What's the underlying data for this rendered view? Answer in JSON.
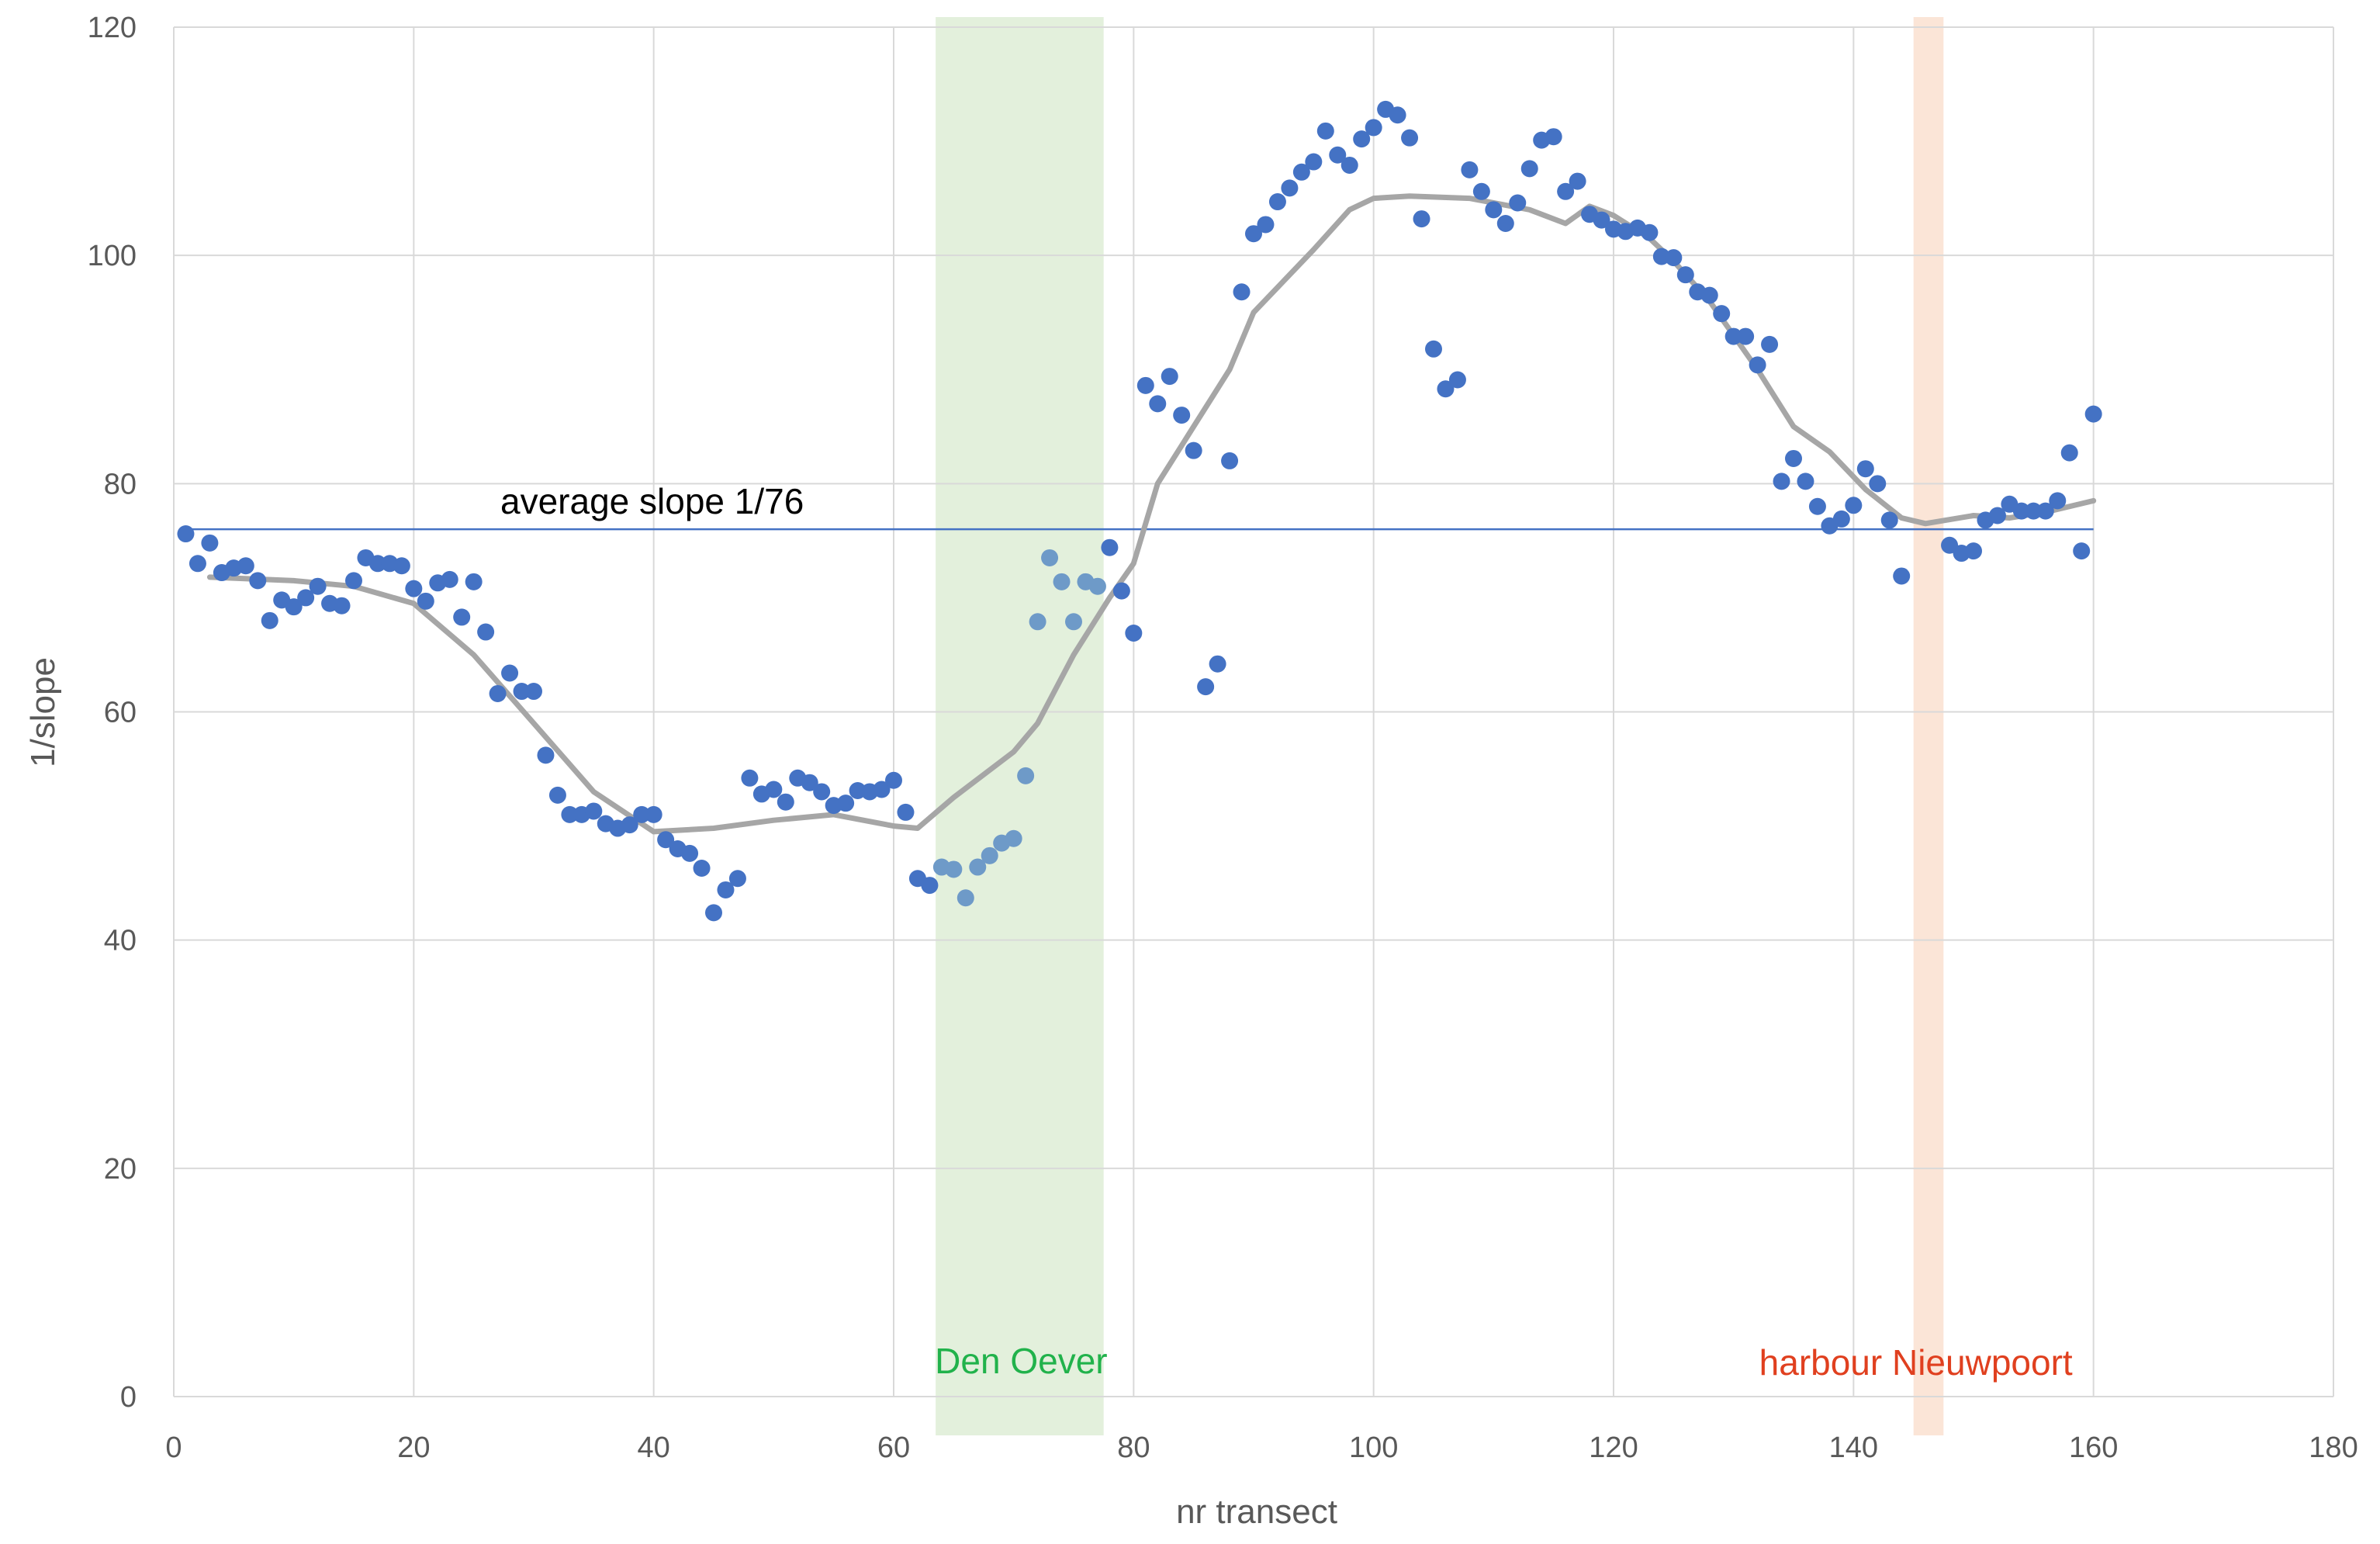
{
  "chart_data": {
    "type": "scatter",
    "title": "",
    "xlabel": "nr transect",
    "ylabel": "1/slope",
    "xlim": [
      0,
      180
    ],
    "ylim": [
      0,
      120
    ],
    "x_ticks": [
      0,
      20,
      40,
      60,
      80,
      100,
      120,
      140,
      160,
      180
    ],
    "y_ticks": [
      0,
      20,
      40,
      60,
      80,
      100,
      120
    ],
    "grid": true,
    "legend": "none",
    "colors": {
      "points": "#4472C4",
      "points_in_den_oever_band": "#6E9AC8",
      "trend": "#A6A6A6",
      "average_line": "#4472C4",
      "den_oever_band": "#E2EFDA",
      "den_oever_text": "#21B24B",
      "nieuwpoort_band": "#FBE4D5",
      "nieuwpoort_text": "#E0401F",
      "grid": "#D9D9D9",
      "axis_text": "#595959"
    },
    "points": [
      [
        1,
        75.6
      ],
      [
        2,
        73.0
      ],
      [
        3,
        74.8
      ],
      [
        4,
        72.2
      ],
      [
        5,
        72.6
      ],
      [
        6,
        72.8
      ],
      [
        7,
        71.5
      ],
      [
        8,
        68.0
      ],
      [
        9,
        69.8
      ],
      [
        10,
        69.2
      ],
      [
        11,
        70.0
      ],
      [
        12,
        71.0
      ],
      [
        13,
        69.5
      ],
      [
        14,
        69.3
      ],
      [
        15,
        71.5
      ],
      [
        16,
        73.5
      ],
      [
        17,
        73.0
      ],
      [
        18,
        73.0
      ],
      [
        19,
        72.8
      ],
      [
        20,
        70.8
      ],
      [
        21,
        69.7
      ],
      [
        22,
        71.3
      ],
      [
        23,
        71.6
      ],
      [
        24,
        68.3
      ],
      [
        25,
        71.4
      ],
      [
        26,
        67.0
      ],
      [
        27,
        61.6
      ],
      [
        28,
        63.4
      ],
      [
        29,
        61.8
      ],
      [
        30,
        61.8
      ],
      [
        31,
        56.2
      ],
      [
        32,
        52.7
      ],
      [
        33,
        51.0
      ],
      [
        34,
        51.0
      ],
      [
        35,
        51.3
      ],
      [
        36,
        50.2
      ],
      [
        37,
        49.8
      ],
      [
        38,
        50.1
      ],
      [
        39,
        51.0
      ],
      [
        40,
        51.0
      ],
      [
        41,
        48.8
      ],
      [
        42,
        48.0
      ],
      [
        43,
        47.6
      ],
      [
        44,
        46.3
      ],
      [
        45,
        42.4
      ],
      [
        46,
        44.4
      ],
      [
        47,
        45.4
      ],
      [
        48,
        54.2
      ],
      [
        49,
        52.8
      ],
      [
        50,
        53.2
      ],
      [
        51,
        52.1
      ],
      [
        52,
        54.2
      ],
      [
        53,
        53.8
      ],
      [
        54,
        53.0
      ],
      [
        55,
        51.8
      ],
      [
        56,
        52.0
      ],
      [
        57,
        53.1
      ],
      [
        58,
        53.0
      ],
      [
        59,
        53.2
      ],
      [
        60,
        54.0
      ],
      [
        61,
        51.2
      ],
      [
        62,
        45.4
      ],
      [
        63,
        44.8
      ],
      [
        64,
        46.4
      ],
      [
        65,
        46.2
      ],
      [
        66,
        43.7
      ],
      [
        67,
        46.4
      ],
      [
        68,
        47.4
      ],
      [
        69,
        48.5
      ],
      [
        70,
        48.9
      ],
      [
        71,
        54.4
      ],
      [
        72,
        67.9
      ],
      [
        73,
        73.5
      ],
      [
        74,
        71.4
      ],
      [
        75,
        67.9
      ],
      [
        76,
        71.4
      ],
      [
        77,
        71.0
      ],
      [
        78,
        74.4
      ],
      [
        79,
        70.6
      ],
      [
        80,
        66.9
      ],
      [
        81,
        88.6
      ],
      [
        82,
        87.0
      ],
      [
        83,
        89.4
      ],
      [
        84,
        86.0
      ],
      [
        85,
        82.9
      ],
      [
        86,
        62.2
      ],
      [
        87,
        64.2
      ],
      [
        88,
        82.0
      ],
      [
        89,
        96.8
      ],
      [
        90,
        101.9
      ],
      [
        91,
        102.7
      ],
      [
        92,
        104.7
      ],
      [
        93,
        105.9
      ],
      [
        94,
        107.3
      ],
      [
        95,
        108.2
      ],
      [
        96,
        110.9
      ],
      [
        97,
        108.8
      ],
      [
        98,
        107.9
      ],
      [
        99,
        110.2
      ],
      [
        100,
        111.2
      ],
      [
        101,
        112.8
      ],
      [
        102,
        112.3
      ],
      [
        103,
        110.3
      ],
      [
        104,
        103.2
      ],
      [
        105,
        91.8
      ],
      [
        106,
        88.3
      ],
      [
        107,
        89.1
      ],
      [
        108,
        107.5
      ],
      [
        109,
        105.6
      ],
      [
        110,
        104.0
      ],
      [
        111,
        102.8
      ],
      [
        112,
        104.6
      ],
      [
        113,
        107.6
      ],
      [
        114,
        110.1
      ],
      [
        115,
        110.4
      ],
      [
        116,
        105.6
      ],
      [
        117,
        106.5
      ],
      [
        118,
        103.6
      ],
      [
        119,
        103.1
      ],
      [
        120,
        102.3
      ],
      [
        121,
        102.1
      ],
      [
        122,
        102.4
      ],
      [
        123,
        102.0
      ],
      [
        124,
        99.9
      ],
      [
        125,
        99.8
      ],
      [
        126,
        98.3
      ],
      [
        127,
        96.8
      ],
      [
        128,
        96.5
      ],
      [
        129,
        94.9
      ],
      [
        130,
        92.9
      ],
      [
        131,
        92.9
      ],
      [
        132,
        90.4
      ],
      [
        133,
        92.2
      ],
      [
        134,
        80.2
      ],
      [
        135,
        82.2
      ],
      [
        136,
        80.2
      ],
      [
        137,
        78.0
      ],
      [
        138,
        76.3
      ],
      [
        139,
        76.9
      ],
      [
        140,
        78.1
      ],
      [
        141,
        81.3
      ],
      [
        142,
        80.0
      ],
      [
        143,
        76.8
      ],
      [
        144,
        71.9
      ],
      [
        148,
        74.6
      ],
      [
        149,
        73.9
      ],
      [
        150,
        74.1
      ],
      [
        151,
        76.8
      ],
      [
        152,
        77.2
      ],
      [
        153,
        78.2
      ],
      [
        154,
        77.6
      ],
      [
        155,
        77.6
      ],
      [
        156,
        77.6
      ],
      [
        157,
        78.5
      ],
      [
        158,
        82.7
      ],
      [
        159,
        74.1
      ],
      [
        160,
        86.1
      ]
    ],
    "trend": [
      [
        3,
        71.8
      ],
      [
        10,
        71.5
      ],
      [
        15,
        71.0
      ],
      [
        20,
        69.5
      ],
      [
        25,
        65.0
      ],
      [
        30,
        59.0
      ],
      [
        35,
        53.0
      ],
      [
        40,
        49.5
      ],
      [
        45,
        49.8
      ],
      [
        50,
        50.5
      ],
      [
        55,
        51.0
      ],
      [
        60,
        50.0
      ],
      [
        62,
        49.8
      ],
      [
        65,
        52.5
      ],
      [
        70,
        56.5
      ],
      [
        72,
        59.0
      ],
      [
        75,
        65.0
      ],
      [
        78,
        70.0
      ],
      [
        80,
        73.0
      ],
      [
        82,
        80.0
      ],
      [
        85,
        85.0
      ],
      [
        88,
        90.0
      ],
      [
        90,
        95.0
      ],
      [
        95,
        100.5
      ],
      [
        98,
        104.0
      ],
      [
        100,
        105.0
      ],
      [
        103,
        105.2
      ],
      [
        108,
        105.0
      ],
      [
        113,
        104.0
      ],
      [
        116,
        102.8
      ],
      [
        118,
        104.3
      ],
      [
        120,
        103.5
      ],
      [
        123,
        101.5
      ],
      [
        125,
        99.5
      ],
      [
        128,
        96.0
      ],
      [
        132,
        90.0
      ],
      [
        135,
        85.0
      ],
      [
        138,
        82.8
      ],
      [
        141,
        79.5
      ],
      [
        144,
        77.0
      ],
      [
        146,
        76.5
      ],
      [
        150,
        77.2
      ],
      [
        153,
        77.0
      ],
      [
        156,
        77.5
      ],
      [
        160,
        78.5
      ]
    ],
    "reference_line": {
      "y": 76,
      "x_start": 1,
      "x_end": 160,
      "label": "average slope 1/76"
    },
    "bands": [
      {
        "x_start": 63.5,
        "x_end": 77.5,
        "label": "Den Oever"
      },
      {
        "x_start": 145,
        "x_end": 147.5,
        "label": "harbour Nieuwpoort"
      }
    ]
  }
}
